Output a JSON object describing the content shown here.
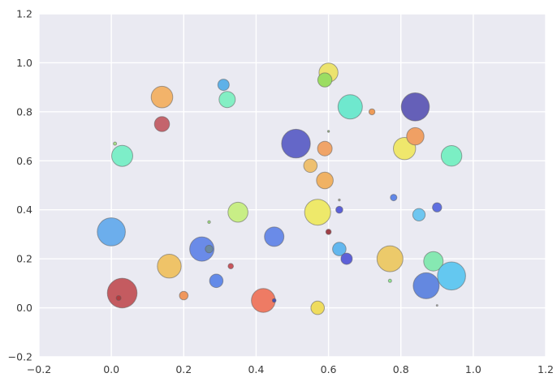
{
  "chart_data": {
    "type": "scatter",
    "title": "",
    "xlabel": "",
    "ylabel": "",
    "xlim": [
      -0.2,
      1.2
    ],
    "ylim": [
      -0.2,
      1.2
    ],
    "grid": true,
    "legend": null,
    "xticks": {
      "values": [
        -0.2,
        0.0,
        0.2,
        0.4,
        0.6,
        0.8,
        1.0,
        1.2
      ],
      "labels": [
        "−0.2",
        "0.0",
        "0.2",
        "0.4",
        "0.6",
        "0.8",
        "1.0",
        "1.2"
      ]
    },
    "yticks": {
      "values": [
        -0.2,
        0.0,
        0.2,
        0.4,
        0.6,
        0.8,
        1.0,
        1.2
      ],
      "labels": [
        "−0.2",
        "0.0",
        "0.2",
        "0.4",
        "0.6",
        "0.8",
        "1.0",
        "1.2"
      ]
    },
    "style": {
      "outer_bg": "#ffffff",
      "plot_bg": "#eaeaf2",
      "grid_color": "#ffffff",
      "tick_color": "#3a3a3a",
      "point_stroke": "rgba(95,95,95,0.55)"
    },
    "points": [
      {
        "x": 0.6,
        "y": 0.96,
        "r": 11.7,
        "color": "#ece36e"
      },
      {
        "x": 0.59,
        "y": 0.93,
        "r": 8.7,
        "color": "#9bdd62"
      },
      {
        "x": 0.66,
        "y": 0.82,
        "r": 15.0,
        "color": "#6fe8ce"
      },
      {
        "x": 0.72,
        "y": 0.8,
        "r": 3.7,
        "color": "#ee9b58"
      },
      {
        "x": 0.31,
        "y": 0.91,
        "r": 7.0,
        "color": "#5fb1e8"
      },
      {
        "x": 0.32,
        "y": 0.85,
        "r": 10.0,
        "color": "#84efc4"
      },
      {
        "x": 0.14,
        "y": 0.86,
        "r": 13.3,
        "color": "#f2b36a"
      },
      {
        "x": 0.14,
        "y": 0.75,
        "r": 9.3,
        "color": "#c4646c"
      },
      {
        "x": 0.01,
        "y": 0.67,
        "r": 2.0,
        "color": "#a8e088"
      },
      {
        "x": 0.03,
        "y": 0.62,
        "r": 13.0,
        "color": "#7deec8"
      },
      {
        "x": 0.84,
        "y": 0.82,
        "r": 17.3,
        "color": "#6560b8"
      },
      {
        "x": 0.81,
        "y": 0.65,
        "r": 13.7,
        "color": "#efe76c"
      },
      {
        "x": 0.84,
        "y": 0.7,
        "r": 10.7,
        "color": "#f0a064"
      },
      {
        "x": 0.94,
        "y": 0.62,
        "r": 12.7,
        "color": "#7befc4"
      },
      {
        "x": 0.51,
        "y": 0.67,
        "r": 17.7,
        "color": "#6467c8"
      },
      {
        "x": 0.59,
        "y": 0.65,
        "r": 9.0,
        "color": "#f0a468"
      },
      {
        "x": 0.55,
        "y": 0.58,
        "r": 8.3,
        "color": "#eec070"
      },
      {
        "x": 0.59,
        "y": 0.52,
        "r": 10.3,
        "color": "#f0b264"
      },
      {
        "x": 0.6,
        "y": 0.72,
        "r": 1.2,
        "color": "#97b584"
      },
      {
        "x": 0.0,
        "y": 0.31,
        "r": 17.3,
        "color": "#6caeec"
      },
      {
        "x": 0.03,
        "y": 0.06,
        "r": 18.3,
        "color": "#c45b60"
      },
      {
        "x": 0.02,
        "y": 0.04,
        "r": 3.0,
        "color": "#b33a3e"
      },
      {
        "x": 0.16,
        "y": 0.17,
        "r": 14.7,
        "color": "#efc368"
      },
      {
        "x": 0.25,
        "y": 0.24,
        "r": 15.0,
        "color": "#6a8be8"
      },
      {
        "x": 0.27,
        "y": 0.24,
        "r": 4.7,
        "color": "#6b89a0"
      },
      {
        "x": 0.27,
        "y": 0.35,
        "r": 1.7,
        "color": "#a0e080"
      },
      {
        "x": 0.35,
        "y": 0.39,
        "r": 12.3,
        "color": "#c8ee86"
      },
      {
        "x": 0.33,
        "y": 0.17,
        "r": 3.3,
        "color": "#c9555c"
      },
      {
        "x": 0.29,
        "y": 0.11,
        "r": 8.3,
        "color": "#638ae8"
      },
      {
        "x": 0.2,
        "y": 0.05,
        "r": 5.3,
        "color": "#f0975c"
      },
      {
        "x": 0.42,
        "y": 0.03,
        "r": 14.7,
        "color": "#ee7b64"
      },
      {
        "x": 0.45,
        "y": 0.03,
        "r": 2.3,
        "color": "#4850b0"
      },
      {
        "x": 0.45,
        "y": 0.29,
        "r": 12.0,
        "color": "#6a8be8"
      },
      {
        "x": 0.57,
        "y": 0.39,
        "r": 16.0,
        "color": "#eee96a"
      },
      {
        "x": 0.63,
        "y": 0.4,
        "r": 4.3,
        "color": "#5b60d8"
      },
      {
        "x": 0.63,
        "y": 0.44,
        "r": 1.2,
        "color": "#a8ab96"
      },
      {
        "x": 0.78,
        "y": 0.45,
        "r": 4.0,
        "color": "#6087e8"
      },
      {
        "x": 0.85,
        "y": 0.38,
        "r": 7.7,
        "color": "#6ec6f0"
      },
      {
        "x": 0.9,
        "y": 0.41,
        "r": 5.7,
        "color": "#5f6fe0"
      },
      {
        "x": 0.6,
        "y": 0.31,
        "r": 3.3,
        "color": "#a04048"
      },
      {
        "x": 0.63,
        "y": 0.24,
        "r": 8.3,
        "color": "#63b7ee"
      },
      {
        "x": 0.65,
        "y": 0.2,
        "r": 7.0,
        "color": "#5d60d8"
      },
      {
        "x": 0.77,
        "y": 0.2,
        "r": 16.0,
        "color": "#ecca6a"
      },
      {
        "x": 0.77,
        "y": 0.11,
        "r": 2.0,
        "color": "#90e890"
      },
      {
        "x": 0.89,
        "y": 0.19,
        "r": 12.0,
        "color": "#86e8b2"
      },
      {
        "x": 0.87,
        "y": 0.09,
        "r": 16.0,
        "color": "#6488e0"
      },
      {
        "x": 0.94,
        "y": 0.13,
        "r": 17.3,
        "color": "#64c8f0"
      },
      {
        "x": 0.57,
        "y": 0.0,
        "r": 8.3,
        "color": "#efdc5e"
      },
      {
        "x": 0.9,
        "y": 0.01,
        "r": 1.0,
        "color": "#b3b3ab"
      }
    ]
  }
}
